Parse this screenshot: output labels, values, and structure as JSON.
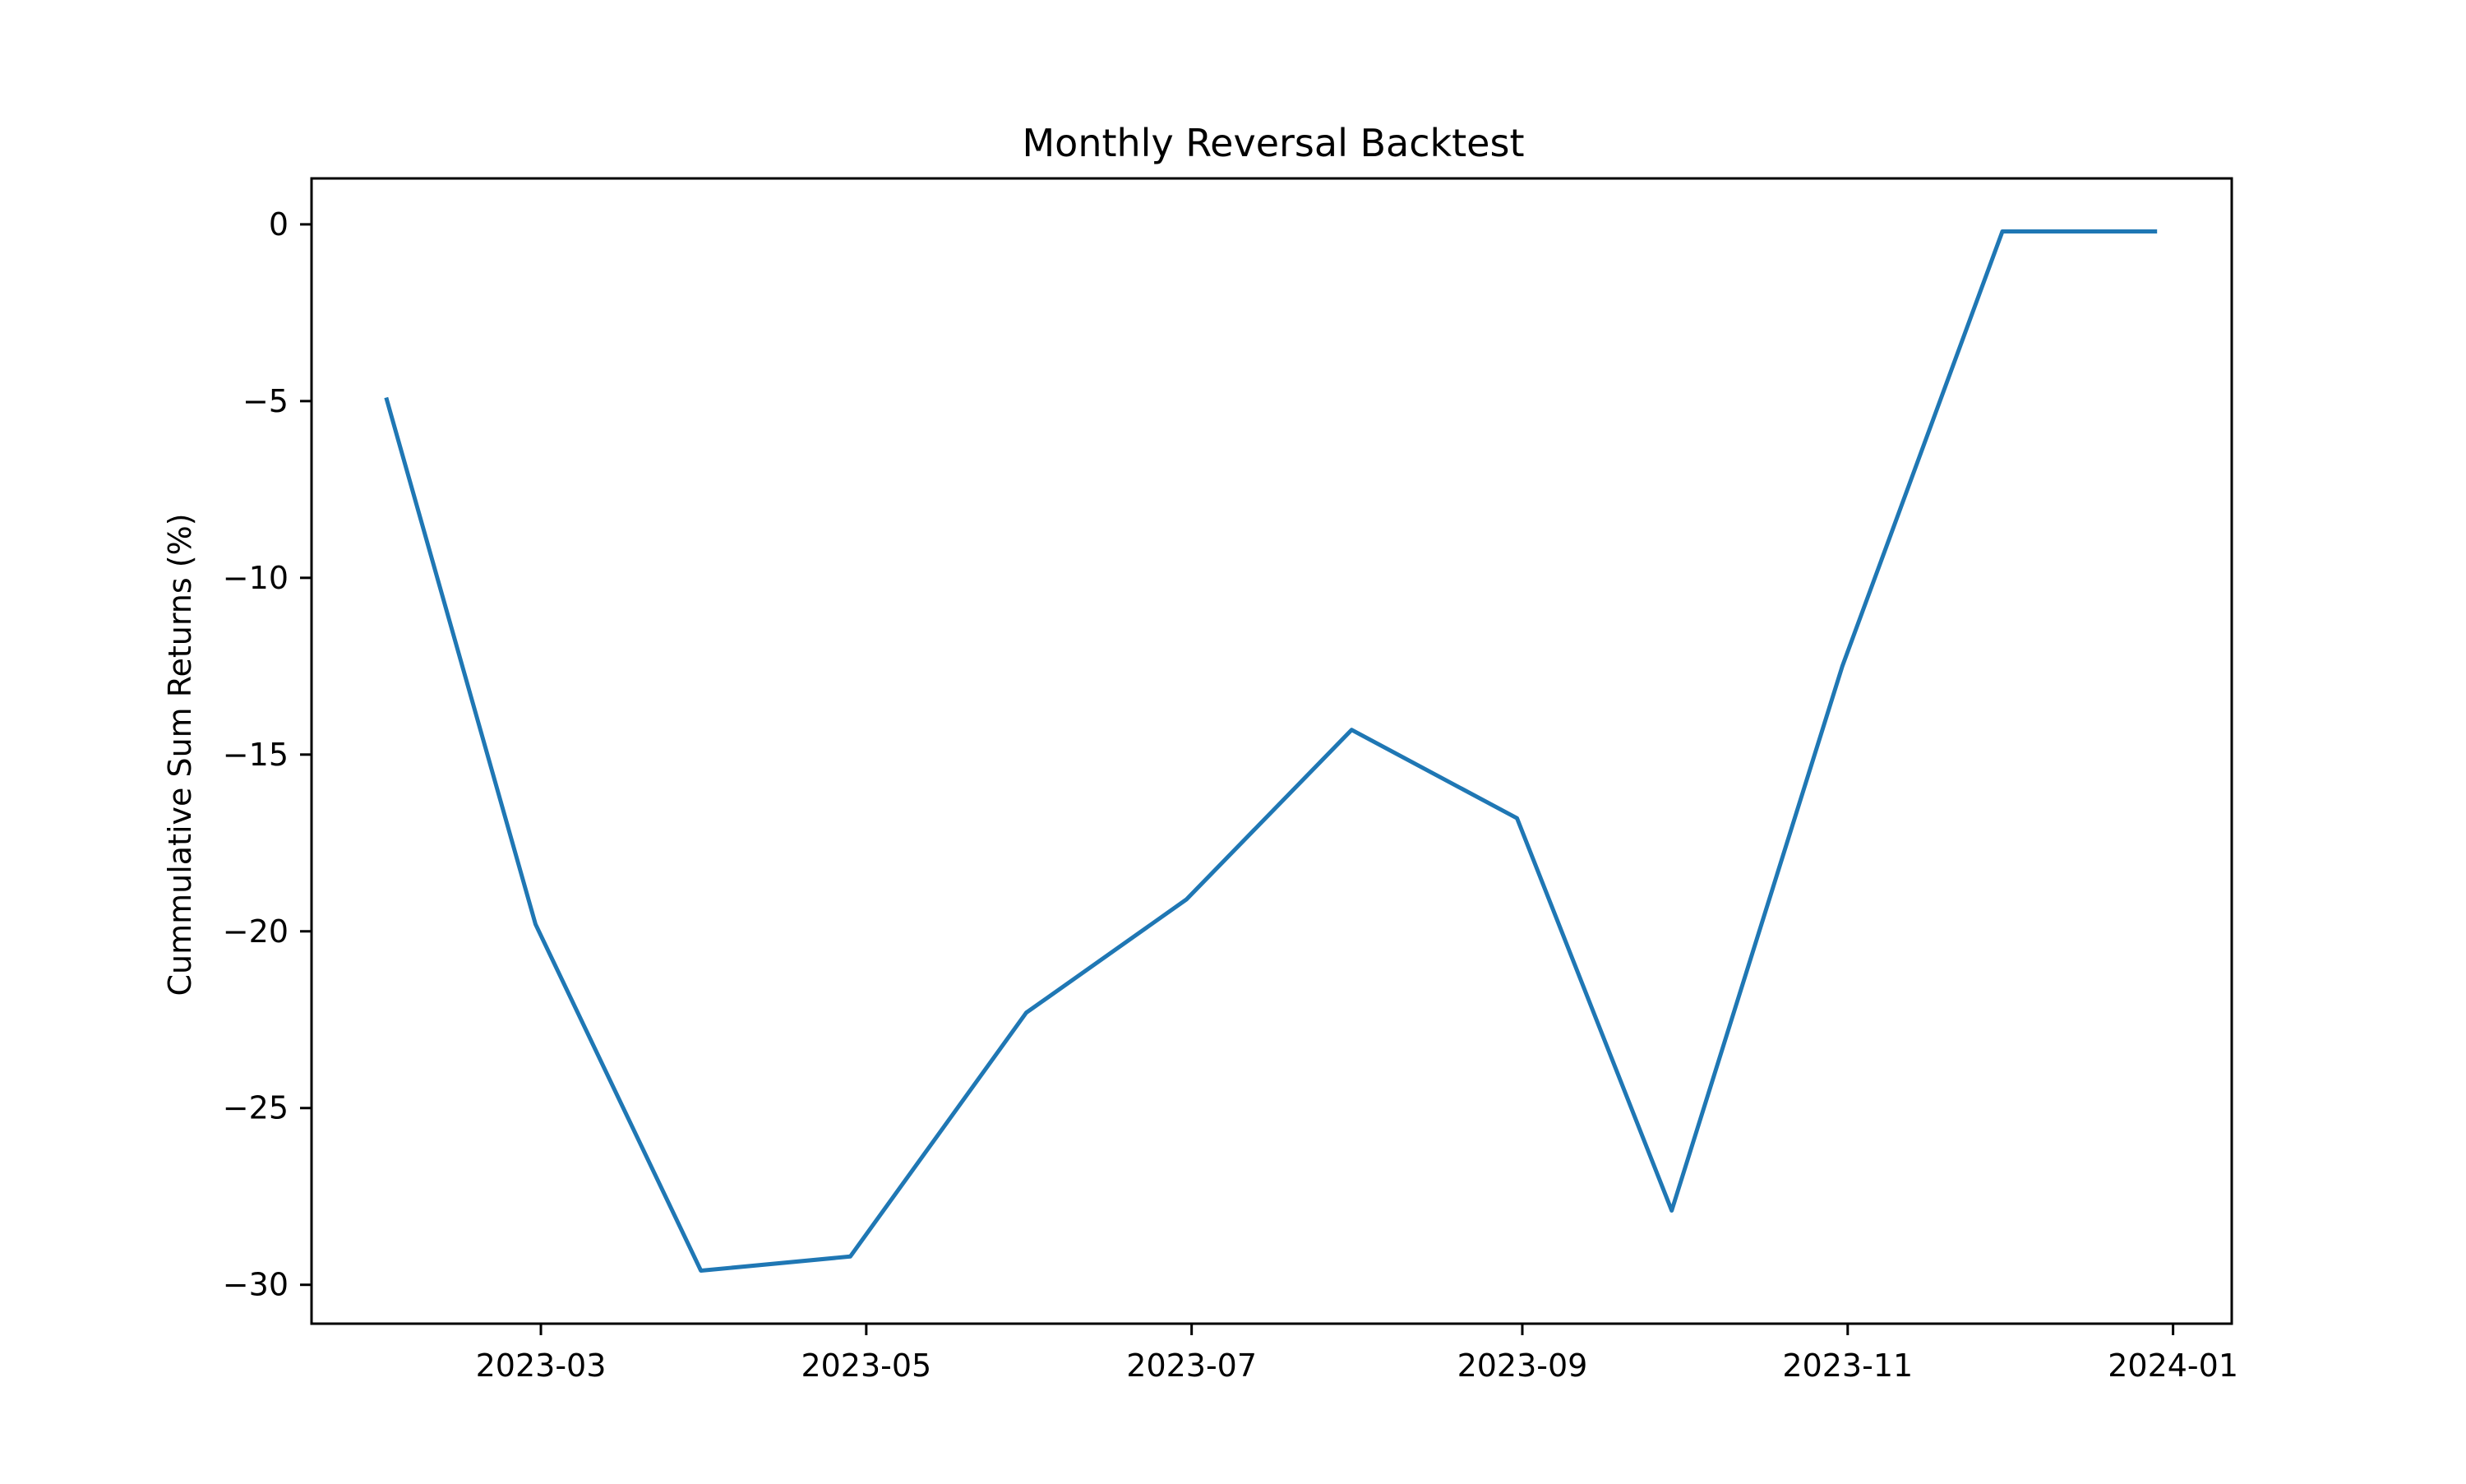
{
  "chart_data": {
    "type": "line",
    "title": "Monthly Reversal Backtest",
    "xlabel": "",
    "ylabel": "Cummulative Sum Returns (%)",
    "x": [
      "2023-01-31",
      "2023-02-28",
      "2023-03-31",
      "2023-04-28",
      "2023-05-31",
      "2023-06-30",
      "2023-07-31",
      "2023-08-31",
      "2023-09-29",
      "2023-10-31",
      "2023-11-30",
      "2023-12-29"
    ],
    "series": [
      {
        "values": [
          -4.9,
          -19.8,
          -29.6,
          -29.2,
          -22.3,
          -19.1,
          -14.3,
          -16.8,
          -27.9,
          -12.5,
          -0.2,
          -0.2
        ],
        "color": "#1f77b4"
      }
    ],
    "xlim": [
      "2023-01-17",
      "2024-01-12"
    ],
    "ylim": [
      -31.1,
      1.3
    ],
    "xticks": [
      "2023-03",
      "2023-05",
      "2023-07",
      "2023-09",
      "2023-11",
      "2024-01"
    ],
    "yticks": [
      0,
      -5,
      -10,
      -15,
      -20,
      -25,
      -30
    ],
    "ytick_labels": [
      "0",
      "−5",
      "−10",
      "−15",
      "−20",
      "−25",
      "−30"
    ],
    "grid": false,
    "legend": "none"
  }
}
